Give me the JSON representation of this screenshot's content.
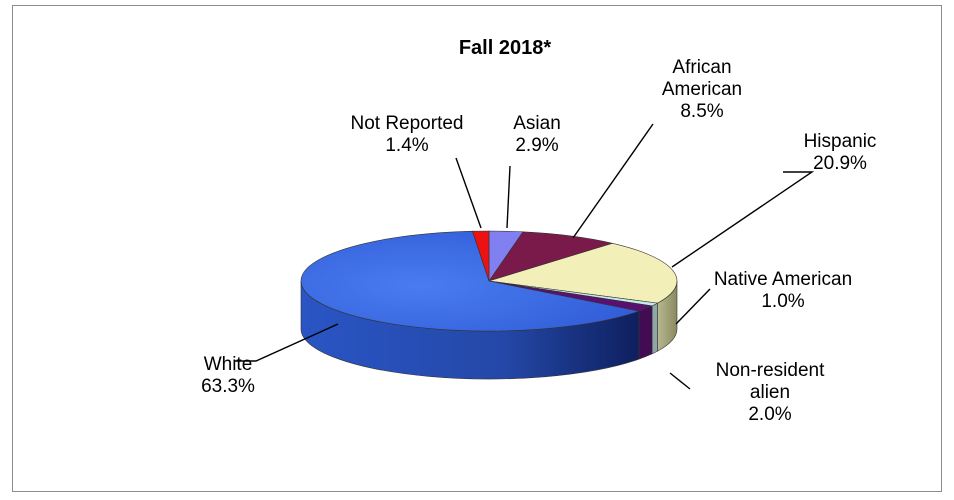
{
  "chart_data": {
    "type": "pie",
    "title": "Fall 2018*",
    "slices": [
      {
        "label_lines": [
          "Asian"
        ],
        "value_text": "2.9%",
        "value": 2.9,
        "color": "#8080f0"
      },
      {
        "label_lines": [
          "African",
          "American"
        ],
        "value_text": "8.5%",
        "value": 8.5,
        "color": "#7a1a4a"
      },
      {
        "label_lines": [
          "Hispanic"
        ],
        "value_text": "20.9%",
        "value": 20.9,
        "color": "#f2f0b8"
      },
      {
        "label_lines": [
          "Native American"
        ],
        "value_text": "1.0%",
        "value": 1.0,
        "color": "#c8e8e8"
      },
      {
        "label_lines": [
          "Non-resident",
          "alien"
        ],
        "value_text": "2.0%",
        "value": 2.0,
        "color": "#5a1070"
      },
      {
        "label_lines": [
          "White"
        ],
        "value_text": "63.3%",
        "value": 63.3,
        "color": "#3366dd"
      },
      {
        "label_lines": [
          "Not Reported"
        ],
        "value_text": "1.4%",
        "value": 1.4,
        "color": "#ee1111"
      }
    ]
  }
}
